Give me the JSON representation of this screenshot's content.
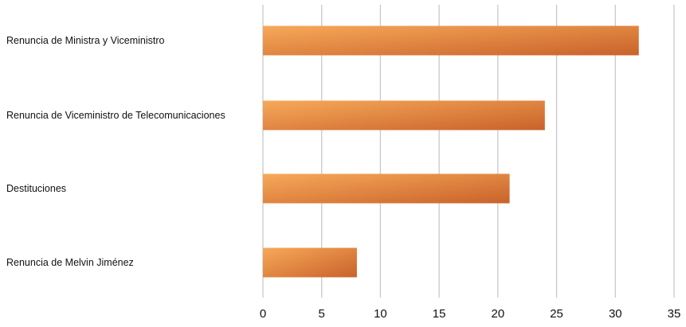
{
  "chart_data": {
    "type": "bar",
    "orientation": "horizontal",
    "categories": [
      "Renuncia de Ministra y Viceministro",
      "Renuncia de Viceministro de Telecomunicaciones",
      "Destituciones",
      "Renuncia de Melvin Jiménez"
    ],
    "values": [
      32,
      24,
      21,
      8
    ],
    "title": "",
    "xlabel": "",
    "ylabel": "",
    "xlim": [
      0,
      35
    ],
    "xticks": [
      "0",
      "5",
      "10",
      "15",
      "20",
      "25",
      "30",
      "35"
    ],
    "grid": "vertical",
    "legend": "none",
    "colors": {
      "bar_light": "#f7a95a",
      "bar_dark": "#c9622a",
      "grid": "#c8c8c8"
    }
  }
}
